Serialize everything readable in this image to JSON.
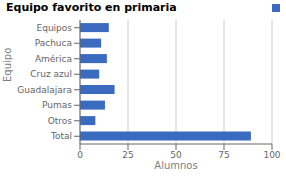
{
  "chart_data": {
    "type": "bar",
    "title": "Equipo favorito en primaria",
    "categories": [
      "Total",
      "Otros",
      "Pumas",
      "Guadalajara",
      "Cruz azul",
      "América",
      "Pachuca",
      "Equipos"
    ],
    "values": [
      89,
      8,
      13,
      18,
      10,
      14,
      11,
      15
    ],
    "color": "#3a6bbf",
    "orientation": "horizontal",
    "xlabel": "Alumnos",
    "ylabel": "Equipo",
    "xlim": [
      0,
      100
    ],
    "xticks": [
      0,
      25,
      50,
      75,
      100
    ],
    "grid": true,
    "legend": "upper right"
  }
}
